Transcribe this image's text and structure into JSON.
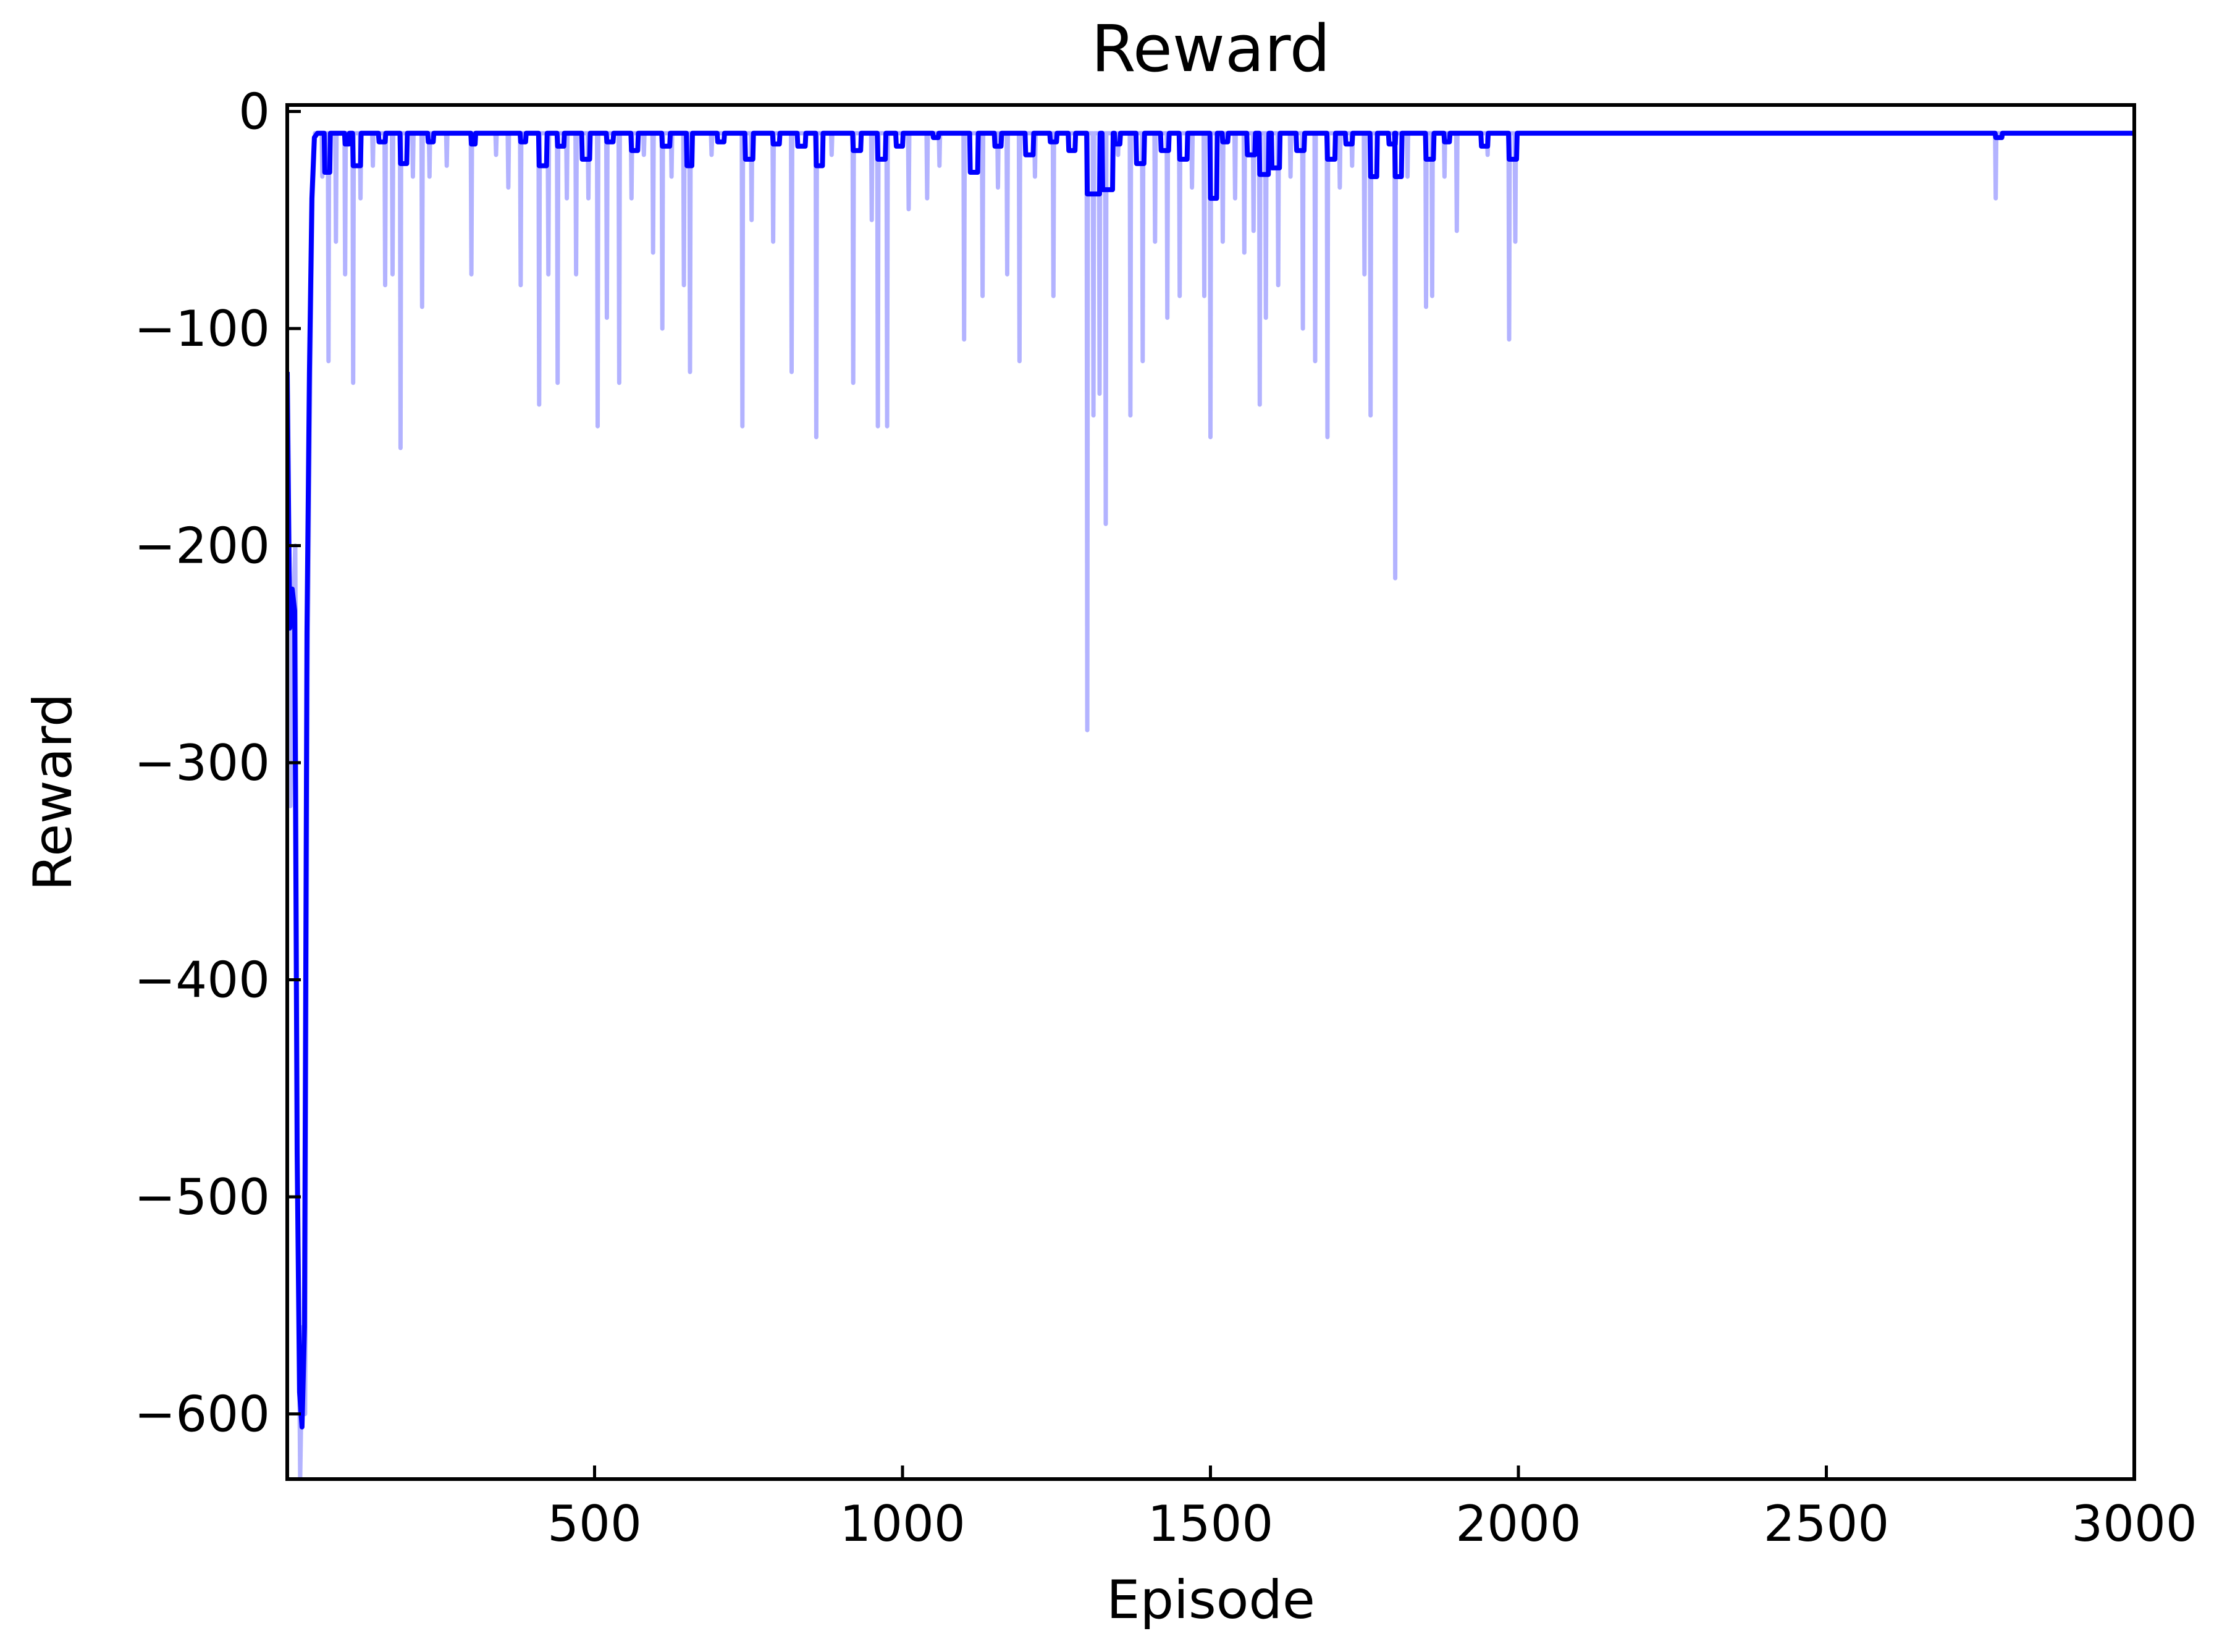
{
  "chart_data": {
    "type": "line",
    "title": "Reward",
    "xlabel": "Episode",
    "ylabel": "Reward",
    "xlim": [
      1,
      3000
    ],
    "ylim": [
      -630,
      3
    ],
    "grid": false,
    "legend": "none",
    "x_ticks": [
      500,
      1000,
      1500,
      2000,
      2500,
      3000
    ],
    "x_tick_labels": [
      "500",
      "1000",
      "1500",
      "2000",
      "2500",
      "3000"
    ],
    "y_ticks": [
      0,
      -100,
      -200,
      -300,
      -400,
      -500,
      -600
    ],
    "y_tick_labels": [
      "0",
      "−100",
      "−200",
      "−300",
      "−400",
      "−500",
      "−600"
    ],
    "colors": {
      "raw": "#b3b3ff",
      "smoothed": "#0000ff"
    },
    "series": [
      {
        "role": "raw",
        "baseline": -10,
        "points": [
          [
            1,
            -120
          ],
          [
            6,
            -320
          ],
          [
            10,
            -230
          ],
          [
            14,
            -200
          ],
          [
            18,
            -480
          ],
          [
            22,
            -630
          ],
          [
            26,
            -560
          ],
          [
            30,
            -600
          ],
          [
            34,
            -260
          ],
          [
            38,
            -130
          ],
          [
            42,
            -40
          ],
          [
            46,
            -10
          ],
          [
            50,
            -10
          ]
        ],
        "spikes": [
          [
            58,
            -30
          ],
          [
            68,
            -115
          ],
          [
            80,
            -60
          ],
          [
            95,
            -75
          ],
          [
            108,
            -125
          ],
          [
            120,
            -40
          ],
          [
            140,
            -25
          ],
          [
            160,
            -80
          ],
          [
            172,
            -75
          ],
          [
            185,
            -155
          ],
          [
            205,
            -30
          ],
          [
            220,
            -90
          ],
          [
            232,
            -30
          ],
          [
            260,
            -25
          ],
          [
            300,
            -75
          ],
          [
            340,
            -20
          ],
          [
            360,
            -35
          ],
          [
            380,
            -80
          ],
          [
            410,
            -135
          ],
          [
            425,
            -75
          ],
          [
            440,
            -125
          ],
          [
            455,
            -40
          ],
          [
            470,
            -75
          ],
          [
            490,
            -40
          ],
          [
            505,
            -145
          ],
          [
            520,
            -95
          ],
          [
            540,
            -125
          ],
          [
            560,
            -40
          ],
          [
            580,
            -20
          ],
          [
            595,
            -65
          ],
          [
            610,
            -100
          ],
          [
            625,
            -30
          ],
          [
            645,
            -80
          ],
          [
            655,
            -120
          ],
          [
            690,
            -20
          ],
          [
            740,
            -145
          ],
          [
            755,
            -50
          ],
          [
            790,
            -60
          ],
          [
            820,
            -120
          ],
          [
            860,
            -150
          ],
          [
            885,
            -20
          ],
          [
            920,
            -125
          ],
          [
            950,
            -50
          ],
          [
            960,
            -145
          ],
          [
            975,
            -145
          ],
          [
            1010,
            -45
          ],
          [
            1040,
            -40
          ],
          [
            1060,
            -25
          ],
          [
            1100,
            -105
          ],
          [
            1130,
            -85
          ],
          [
            1155,
            -35
          ],
          [
            1170,
            -75
          ],
          [
            1190,
            -115
          ],
          [
            1215,
            -30
          ],
          [
            1245,
            -85
          ],
          [
            1270,
            -15
          ],
          [
            1300,
            -285
          ],
          [
            1310,
            -140
          ],
          [
            1320,
            -130
          ],
          [
            1330,
            -190
          ],
          [
            1350,
            -20
          ],
          [
            1370,
            -140
          ],
          [
            1390,
            -115
          ],
          [
            1410,
            -60
          ],
          [
            1430,
            -95
          ],
          [
            1450,
            -85
          ],
          [
            1470,
            -35
          ],
          [
            1490,
            -85
          ],
          [
            1500,
            -150
          ],
          [
            1520,
            -60
          ],
          [
            1540,
            -40
          ],
          [
            1555,
            -65
          ],
          [
            1570,
            -55
          ],
          [
            1580,
            -135
          ],
          [
            1590,
            -95
          ],
          [
            1610,
            -80
          ],
          [
            1630,
            -30
          ],
          [
            1650,
            -100
          ],
          [
            1670,
            -115
          ],
          [
            1690,
            -150
          ],
          [
            1710,
            -35
          ],
          [
            1730,
            -25
          ],
          [
            1750,
            -75
          ],
          [
            1760,
            -140
          ],
          [
            1800,
            -215
          ],
          [
            1820,
            -30
          ],
          [
            1850,
            -90
          ],
          [
            1860,
            -85
          ],
          [
            1880,
            -30
          ],
          [
            1900,
            -55
          ],
          [
            1950,
            -20
          ],
          [
            1985,
            -105
          ],
          [
            1995,
            -60
          ],
          [
            2775,
            -40
          ]
        ]
      },
      {
        "role": "smoothed",
        "baseline": -10,
        "points": [
          [
            1,
            -120
          ],
          [
            5,
            -238
          ],
          [
            9,
            -220
          ],
          [
            13,
            -230
          ],
          [
            17,
            -480
          ],
          [
            21,
            -590
          ],
          [
            25,
            -606
          ],
          [
            29,
            -560
          ],
          [
            33,
            -240
          ],
          [
            37,
            -120
          ],
          [
            41,
            -40
          ],
          [
            45,
            -12
          ],
          [
            50,
            -10
          ]
        ],
        "dips": [
          [
            62,
            -28,
            8
          ],
          [
            95,
            -15,
            6
          ],
          [
            108,
            -25,
            12
          ],
          [
            150,
            -14,
            10
          ],
          [
            185,
            -24,
            10
          ],
          [
            230,
            -14,
            8
          ],
          [
            300,
            -15,
            6
          ],
          [
            380,
            -14,
            8
          ],
          [
            410,
            -25,
            12
          ],
          [
            440,
            -16,
            10
          ],
          [
            480,
            -22,
            12
          ],
          [
            520,
            -14,
            10
          ],
          [
            560,
            -18,
            10
          ],
          [
            610,
            -16,
            12
          ],
          [
            650,
            -25,
            8
          ],
          [
            700,
            -14,
            10
          ],
          [
            745,
            -22,
            12
          ],
          [
            790,
            -15,
            10
          ],
          [
            830,
            -16,
            12
          ],
          [
            860,
            -25,
            10
          ],
          [
            920,
            -18,
            12
          ],
          [
            960,
            -22,
            12
          ],
          [
            990,
            -16,
            10
          ],
          [
            1050,
            -12,
            8
          ],
          [
            1110,
            -28,
            12
          ],
          [
            1150,
            -16,
            10
          ],
          [
            1200,
            -20,
            12
          ],
          [
            1240,
            -14,
            10
          ],
          [
            1270,
            -18,
            10
          ],
          [
            1300,
            -38,
            20
          ],
          [
            1325,
            -36,
            16
          ],
          [
            1345,
            -15,
            8
          ],
          [
            1380,
            -24,
            12
          ],
          [
            1420,
            -18,
            12
          ],
          [
            1450,
            -22,
            12
          ],
          [
            1500,
            -40,
            10
          ],
          [
            1520,
            -14,
            8
          ],
          [
            1560,
            -20,
            12
          ],
          [
            1580,
            -29,
            14
          ],
          [
            1600,
            -26,
            12
          ],
          [
            1640,
            -18,
            12
          ],
          [
            1690,
            -22,
            12
          ],
          [
            1720,
            -15,
            10
          ],
          [
            1760,
            -30,
            10
          ],
          [
            1790,
            -15,
            10
          ],
          [
            1800,
            -30,
            10
          ],
          [
            1850,
            -22,
            12
          ],
          [
            1880,
            -14,
            8
          ],
          [
            1940,
            -16,
            10
          ],
          [
            1985,
            -22,
            12
          ],
          [
            2775,
            -12,
            10
          ]
        ]
      }
    ]
  }
}
